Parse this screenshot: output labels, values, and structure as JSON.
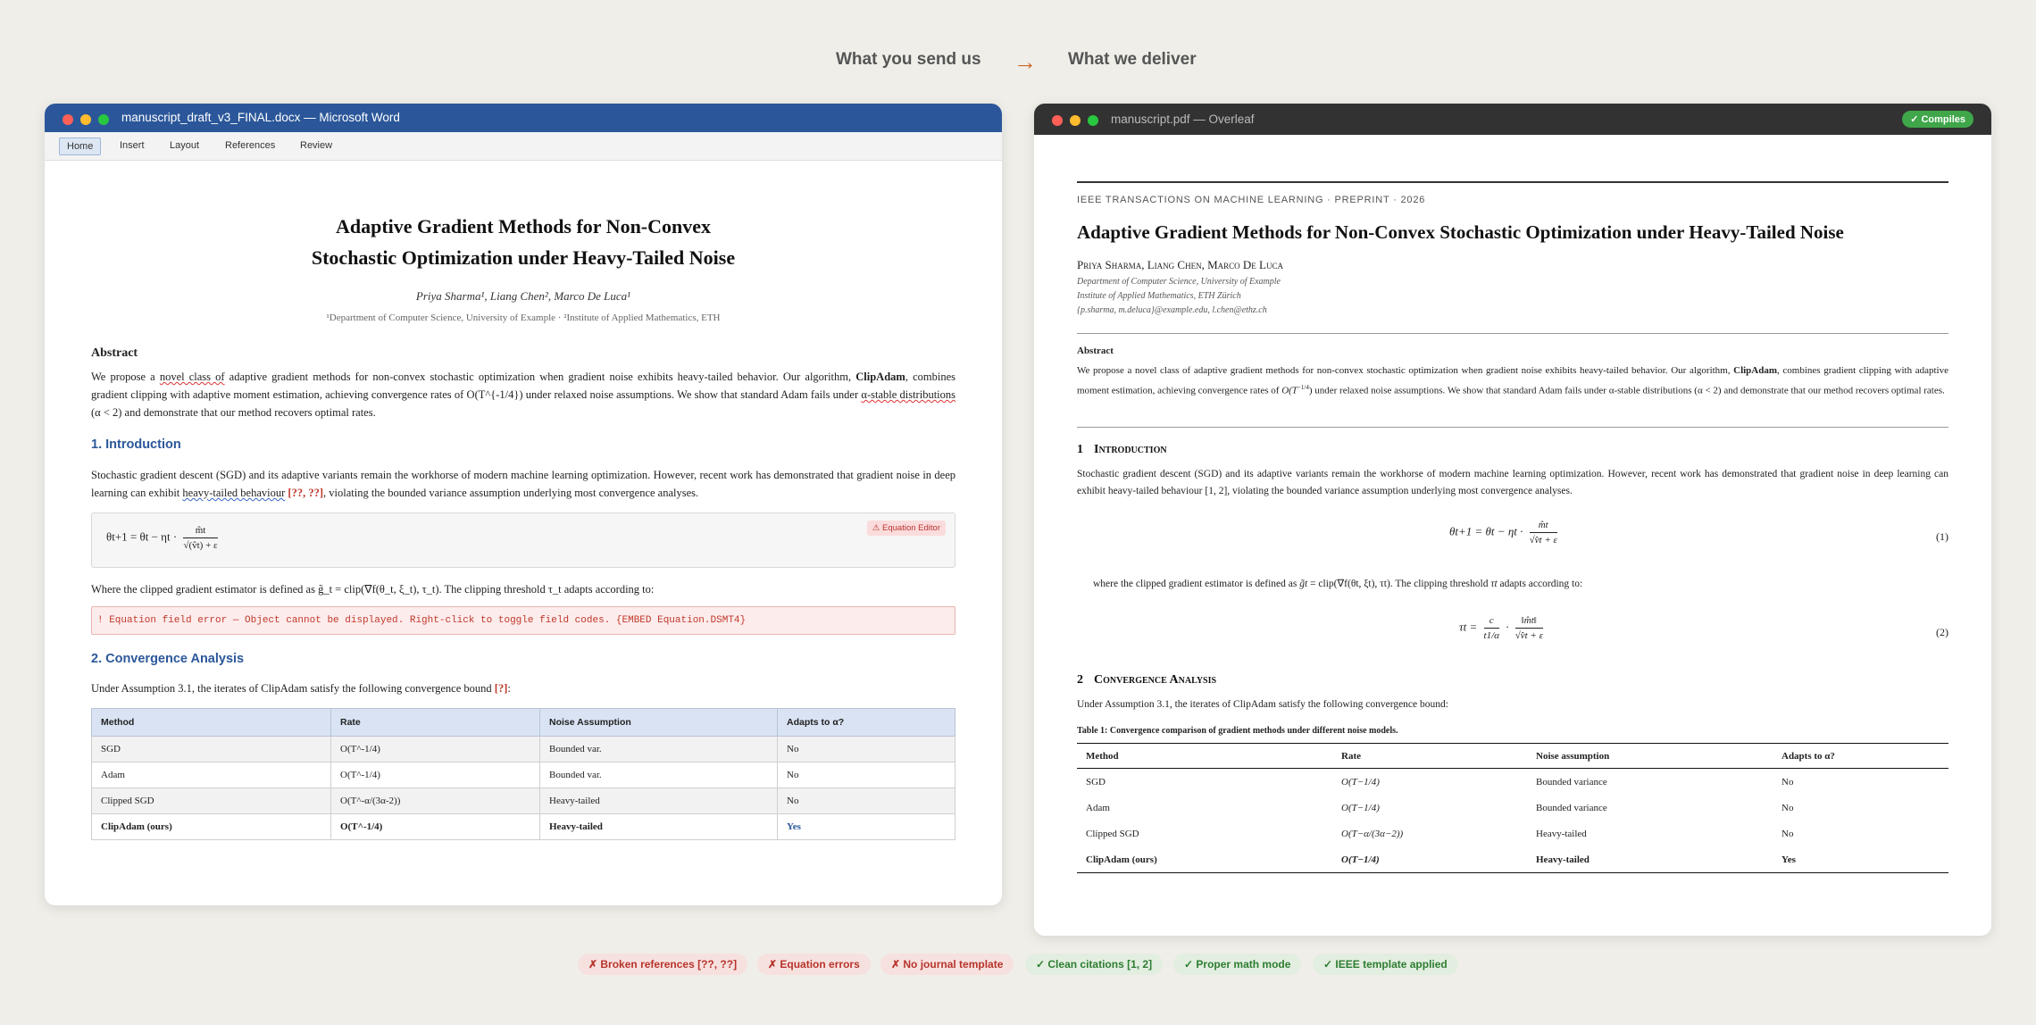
{
  "header": {
    "left": "What you send us",
    "arrow": "→",
    "right": "What we deliver"
  },
  "word": {
    "title": "manuscript_draft_v3_FINAL.docx — Microsoft Word",
    "ribbon": [
      "Home",
      "Insert",
      "Layout",
      "References",
      "Review"
    ],
    "doc_title_1": "Adaptive Gradient Methods for Non-Convex",
    "doc_title_2": "Stochastic Optimization under Heavy-Tailed Noise",
    "authors": "Priya Sharma¹, Liang Chen², Marco De Luca¹",
    "affil": "¹Department of Computer Science, University of Example · ²Institute of Applied Mathematics, ETH",
    "abstract_h": "Abstract",
    "abs_1": "We propose a ",
    "abs_sq1": "novel class of",
    "abs_2": " adaptive gradient methods for non-convex stochastic optimization when gradient noise exhibits heavy-tailed behavior. Our algorithm, ",
    "abs_bold": "ClipAdam",
    "abs_3": ", combines gradient clipping with adaptive moment estimation, achieving convergence rates of O(T^{-1/4}) under relaxed noise assumptions. We show that standard Adam fails under ",
    "abs_sq2": "α-stable distributions",
    "abs_4": " (α < 2) and demonstrate that our method recovers optimal rates.",
    "h1": "1. Introduction",
    "intro_1": "Stochastic gradient descent (SGD) and its adaptive variants remain the workhorse of modern machine learning optimization. However, recent work has demonstrated that gradient noise in deep learning can exhibit ",
    "intro_sq": "heavy-tailed behaviour",
    "intro_ref": "[??, ??]",
    "intro_2": ", violating the bounded variance assumption underlying most convergence analyses.",
    "eq_lhs": "θt+1 = θt − ηt ·",
    "eq_num": "m̂t",
    "eq_den": "√(v̂t) + ε",
    "eq_warn": "⚠ Equation Editor",
    "clip_text": "Where the clipped gradient estimator is defined as g̃_t = clip(∇f(θ_t, ξ_t), τ_t). The clipping threshold τ_t adapts according to:",
    "err": "! Equation field error — Object cannot be displayed. Right-click to toggle field codes. {EMBED Equation.DSMT4}",
    "h2": "2. Convergence Analysis",
    "conv_1": "Under Assumption 3.1, the iterates of ClipAdam satisfy the following convergence bound ",
    "conv_ref": "[?]",
    "conv_2": ":",
    "table_head": [
      "Method",
      "Rate",
      "Noise Assumption",
      "Adapts to α?"
    ],
    "table_rows": [
      [
        "SGD",
        "O(T^-1/4)",
        "Bounded var.",
        "No"
      ],
      [
        "Adam",
        "O(T^-1/4)",
        "Bounded var.",
        "No"
      ],
      [
        "Clipped SGD",
        "O(T^-α/(3α-2))",
        "Heavy-tailed",
        "No"
      ],
      [
        "ClipAdam (ours)",
        "O(T^-1/4)",
        "Heavy-tailed",
        "Yes"
      ]
    ]
  },
  "overleaf": {
    "title": "manuscript.pdf — Overleaf",
    "badge": "✓ Compiles",
    "journal": "IEEE TRANSACTIONS ON MACHINE LEARNING · PREPRINT · 2026",
    "paper_title": "Adaptive Gradient Methods for Non-Convex Stochastic Optimization under Heavy-Tailed Noise",
    "authors": "Priya Sharma, Liang Chen, Marco De Luca",
    "aff1": "Department of Computer Science, University of Example",
    "aff2": "Institute of Applied Mathematics, ETH Zürich",
    "aff3": "{p.sharma, m.deluca}@example.edu, l.chen@ethz.ch",
    "abstract_h": "Abstract",
    "abs_1": "We propose a novel class of adaptive gradient methods for non-convex stochastic optimization when gradient noise exhibits heavy-tailed behavior. Our algorithm, ",
    "abs_bold": "ClipAdam",
    "abs_2": ", combines gradient clipping with adaptive moment estimation, achieving convergence rates of ",
    "abs_rate": "O(T",
    "abs_rate_exp": "−1/4",
    "abs_3": ") under relaxed noise assumptions. We show that standard Adam fails under α-stable distributions (α < 2) and demonstrate that our method recovers optimal rates.",
    "h1_num": "1",
    "h1": "Introduction",
    "intro": "Stochastic gradient descent (SGD) and its adaptive variants remain the workhorse of modern machine learning optimization. However, recent work has demonstrated that gradient noise in deep learning can exhibit heavy-tailed behaviour [1, 2], violating the bounded variance assumption underlying most convergence analyses.",
    "eq1_lhs": "θt+1 = θt − ηt ·",
    "eq1_num": "m̂t",
    "eq1_den": "√v̂t + ε",
    "eq1_no": "(1)",
    "clip_1": "where the clipped gradient estimator is defined as ",
    "clip_g": "g̃t",
    "clip_2": " = clip(∇f(θt, ξt), τt). The clipping threshold ",
    "clip_tau": "τt",
    "clip_3": " adapts according to:",
    "eq2_lhs": "τt =",
    "eq2_n1": "c",
    "eq2_d1": "t1/α",
    "eq2_n2": "‖m̂t‖",
    "eq2_d2": "√v̂t + ε",
    "eq2_no": "(2)",
    "h2_num": "2",
    "h2": "Convergence Analysis",
    "conv": "Under Assumption 3.1, the iterates of ClipAdam satisfy the following convergence bound:",
    "caption": "Table 1: Convergence comparison of gradient methods under different noise models.",
    "table_head": [
      "Method",
      "Rate",
      "Noise assumption",
      "Adapts to α?"
    ],
    "table_rows": [
      [
        "SGD",
        "O(T−1/4)",
        "Bounded variance",
        "No"
      ],
      [
        "Adam",
        "O(T−1/4)",
        "Bounded variance",
        "No"
      ],
      [
        "Clipped SGD",
        "O(T−α/(3α−2))",
        "Heavy-tailed",
        "No"
      ],
      [
        "ClipAdam (ours)",
        "O(T−1/4)",
        "Heavy-tailed",
        "Yes"
      ]
    ]
  },
  "tags": {
    "bad": [
      "✗ Broken references [??, ??]",
      "✗ Equation errors",
      "✗ No journal template"
    ],
    "good": [
      "✓ Clean citations [1, 2]",
      "✓ Proper math mode",
      "✓ IEEE template applied"
    ]
  },
  "colors": {
    "word_blue": "#2b579a",
    "overleaf_dark": "#323232",
    "accent_arrow": "#d0662a",
    "error_red": "#c0392b",
    "ok_green": "#3fa649"
  }
}
